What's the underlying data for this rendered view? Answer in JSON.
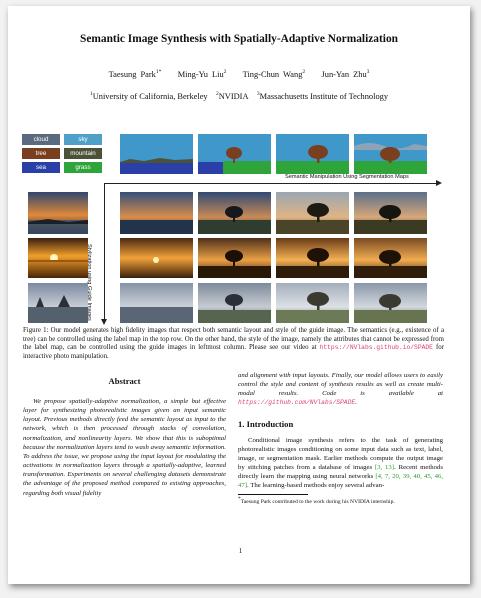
{
  "paper": {
    "title": "Semantic Image Synthesis with Spatially-Adaptive Normalization",
    "authors": [
      {
        "name": "Taesung Park",
        "sup": "1*"
      },
      {
        "name": "Ming-Yu Liu",
        "sup": "2"
      },
      {
        "name": "Ting-Chun Wang",
        "sup": "2"
      },
      {
        "name": "Jun-Yan Zhu",
        "sup": "3"
      }
    ],
    "affiliations": [
      {
        "sup": "1",
        "name": "University of California, Berkeley"
      },
      {
        "sup": "2",
        "name": "NVIDIA"
      },
      {
        "sup": "3",
        "name": "Massachusetts Institute of Technology"
      }
    ]
  },
  "figure": {
    "legend": [
      {
        "label": "cloud",
        "color": "#5c6a80"
      },
      {
        "label": "sky",
        "color": "#4fa0c8"
      },
      {
        "label": "tree",
        "color": "#7a3f1e"
      },
      {
        "label": "mountain",
        "color": "#4c5238"
      },
      {
        "label": "sea",
        "color": "#2b3fa8"
      },
      {
        "label": "grass",
        "color": "#2ea43a"
      }
    ],
    "axis_horizontal": "Semantic Manipulation Using Segmentation Maps",
    "axis_vertical": "Stylization using Guide Images",
    "caption_lead": "Figure 1: Our model generates high fidelity images that respect both semantic layout and style of the guide image. The semantics (e.g., existence of a tree) can be controlled using the label map in the top row. On the other hand, the style of the image, namely the attributes that cannot be expressed from the label map, can be controlled using the guide images in leftmost column. Please see our video at",
    "caption_url": "https://NVlabs.github.io/SPADE",
    "caption_tail": "for interactive photo manipulation."
  },
  "abstract": {
    "heading": "Abstract",
    "text": "We propose spatially-adaptive normalization, a simple but effective layer for synthesizing photorealistic images given an input semantic layout. Previous methods directly feed the semantic layout as input to the network, which is then processed through stacks of convolution, normalization, and nonlinearity layers. We show that this is suboptimal because the normalization layers tend to wash away semantic information. To address the issue, we propose using the input layout for modulating the activations in normalization layers through a spatially-adaptive, learned transformation. Experiments on several challenging datasets demonstrate the advantage of the proposed method compared to existing approaches, regarding both visual fidelity",
    "continued": "and alignment with input layouts. Finally, our model allows users to easily control the style and content of synthesis results as well as create multi-modal results. Code is available at",
    "code_url": "https://github.com/NVlabs/SPADE",
    "continued_end": "."
  },
  "introduction": {
    "heading": "1. Introduction",
    "p1": "Conditional image synthesis refers to the task of generating photorealistic images conditioning on some input data such as text, label, image, or segmentation mask. Earlier methods compute the output image by stitching patches from a database of images",
    "cite1": "[3, 13]",
    "p2": ". Recent methods directly learn the mapping using neural networks",
    "cite2": "[4, 7, 20, 39, 40, 45, 46, 47]",
    "p3": ". The learning-based methods enjoy several advan-"
  },
  "footnote": {
    "sup": "*",
    "text": "Taesung Park contributed to the work during his NVIDIA internship."
  },
  "page_number": "1"
}
